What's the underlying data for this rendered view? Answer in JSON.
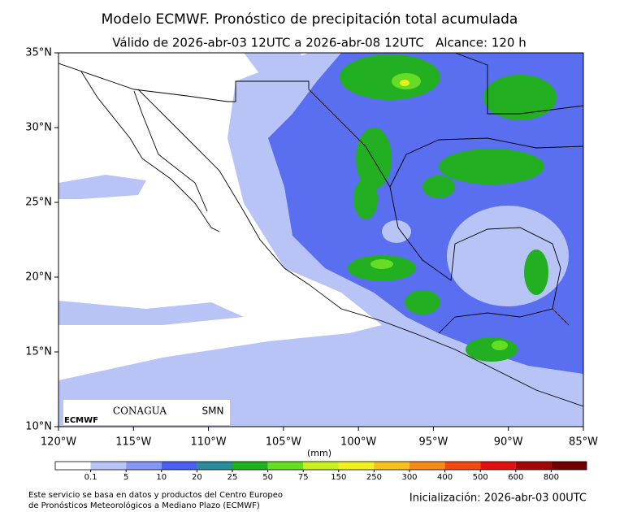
{
  "header": {
    "title": "Modelo ECMWF. Pronóstico de precipitación total acumulada",
    "subtitle": "Válido de 2026-abr-03 12UTC a 2026-abr-08 12UTC   Alcance: 120 h"
  },
  "map": {
    "lonlim": [
      -120,
      -85
    ],
    "latlim": [
      10,
      35
    ],
    "lon_ticks": [
      {
        "value": -120,
        "label": "120°W"
      },
      {
        "value": -115,
        "label": "115°W"
      },
      {
        "value": -110,
        "label": "110°W"
      },
      {
        "value": -105,
        "label": "105°W"
      },
      {
        "value": -100,
        "label": "100°W"
      },
      {
        "value": -95,
        "label": "95°W"
      },
      {
        "value": -90,
        "label": "90°W"
      },
      {
        "value": -85,
        "label": "85°W"
      }
    ],
    "lat_ticks": [
      {
        "value": 10,
        "label": "10°N"
      },
      {
        "value": 15,
        "label": "15°N"
      },
      {
        "value": 20,
        "label": "20°N"
      },
      {
        "value": 25,
        "label": "25°N"
      },
      {
        "value": 30,
        "label": "30°N"
      },
      {
        "value": 35,
        "label": "35°N"
      }
    ]
  },
  "colorbar": {
    "unit": "(mm)",
    "ticks": [
      0.1,
      5,
      10,
      20,
      25,
      50,
      75,
      150,
      250,
      300,
      400,
      500,
      600,
      800
    ],
    "colors": [
      "#ffffff",
      "#b8c4f5",
      "#8597f2",
      "#4a5ff0",
      "#2a8c9a",
      "#1fb01f",
      "#66dd22",
      "#c8f020",
      "#f0f020",
      "#f5c020",
      "#f58a1a",
      "#f04a10",
      "#e01010",
      "#a00808",
      "#700000"
    ]
  },
  "logos": {
    "ecmwf": "ECMWF",
    "conagua": "CONAGUA",
    "smn": "SMN"
  },
  "footer": {
    "note_line1": "Este servicio se basa en datos y productos del Centro Europeo",
    "note_line2": "de Pronósticos Meteorológicos a Mediano Plazo (ECMWF)",
    "init": "Inicialización: 2026-abr-03 00UTC"
  }
}
